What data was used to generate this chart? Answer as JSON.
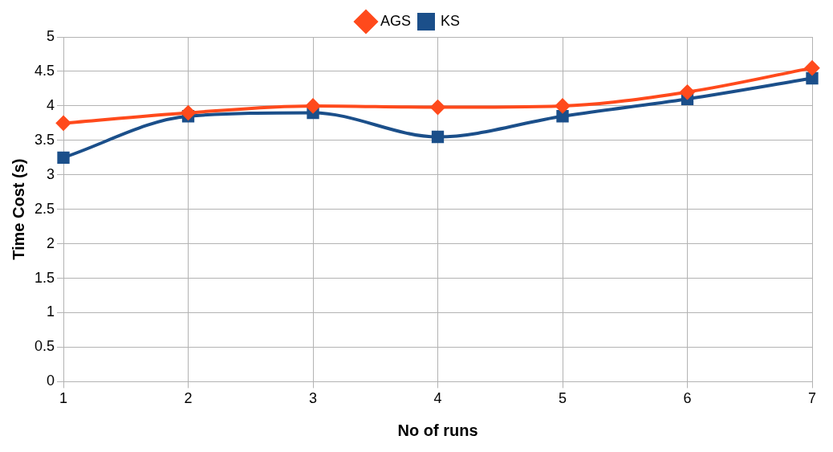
{
  "chart_data": {
    "type": "line",
    "xlabel": "No of runs",
    "ylabel": "Time Cost (s)",
    "x": [
      1,
      2,
      3,
      4,
      5,
      6,
      7
    ],
    "series": [
      {
        "name": "KS",
        "color": "#1b4f8a",
        "marker": "square",
        "values": [
          3.25,
          3.85,
          3.9,
          3.55,
          3.85,
          4.1,
          4.4
        ]
      },
      {
        "name": "AGS",
        "color": "#ff4a1c",
        "marker": "diamond",
        "values": [
          3.75,
          3.9,
          4.0,
          3.98,
          4.0,
          4.2,
          4.55
        ]
      }
    ],
    "xlim": [
      1,
      7
    ],
    "xticks": [
      1,
      2,
      3,
      4,
      5,
      6,
      7
    ],
    "ylim": [
      0,
      5
    ],
    "yticks": [
      0,
      0.5,
      1,
      1.5,
      2,
      2.5,
      3,
      3.5,
      4,
      4.5,
      5
    ],
    "grid": true,
    "legend": "top"
  }
}
